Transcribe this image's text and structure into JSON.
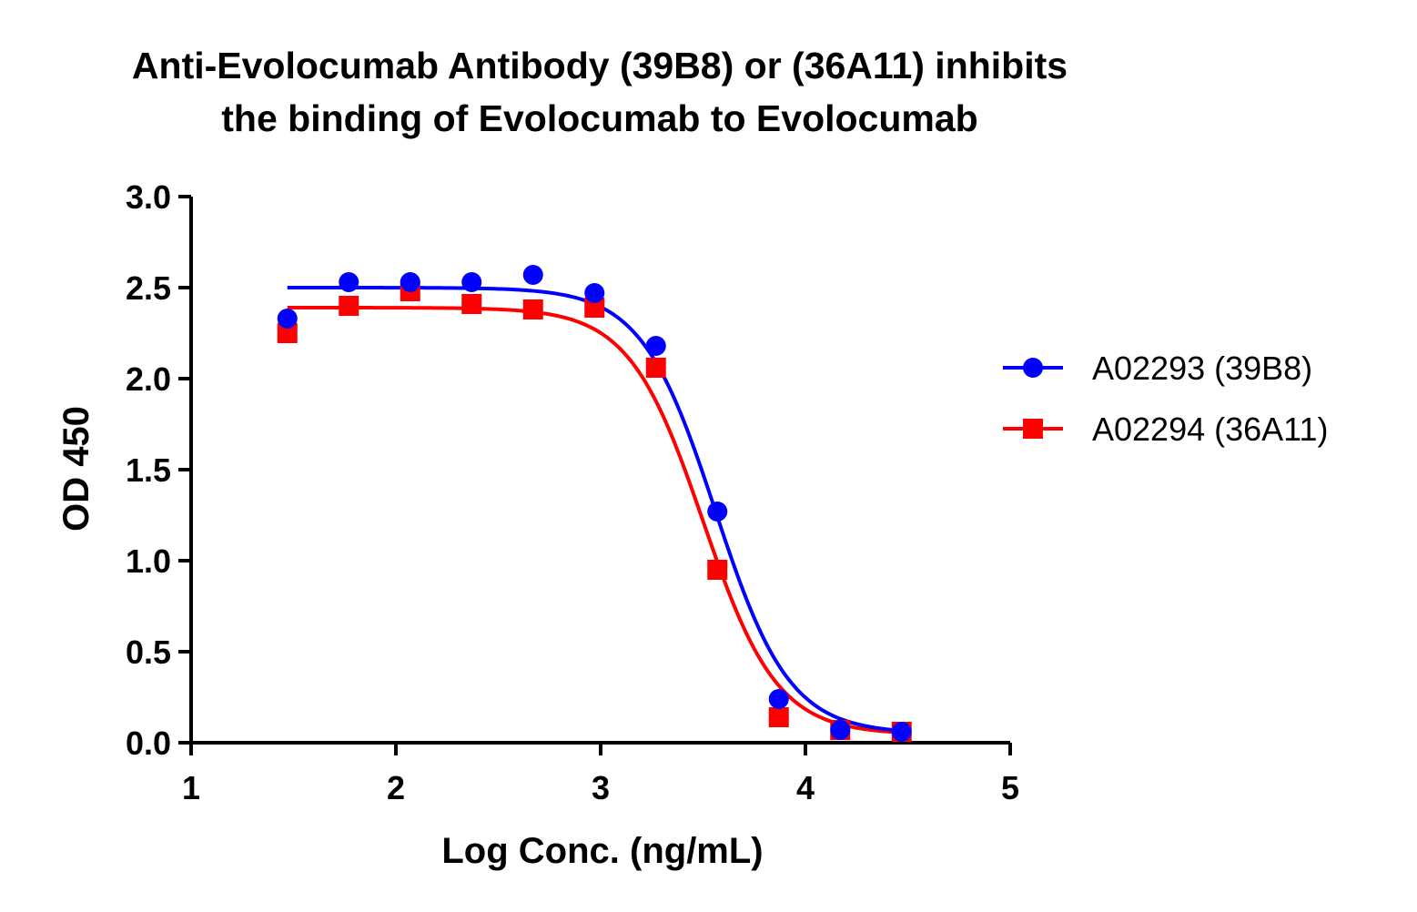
{
  "chart_data": {
    "type": "scatter",
    "title_lines": [
      "Anti-Evolocumab Antibody (39B8) or (36A11) inhibits",
      "the binding of Evolocumab to Evolocumab"
    ],
    "xlabel": "Log Conc. (ng/mL)",
    "ylabel": "OD 450",
    "xlim": [
      1,
      5
    ],
    "ylim": [
      0,
      3
    ],
    "xticks": [
      "1",
      "2",
      "3",
      "4",
      "5"
    ],
    "yticks": [
      "0.0",
      "0.5",
      "1.0",
      "1.5",
      "2.0",
      "2.5",
      "3.0"
    ],
    "legend_position": "right",
    "series": [
      {
        "name": "A02293 (39B8)",
        "color": "#0000ff",
        "marker": "circle",
        "x": [
          1.47,
          1.77,
          2.07,
          2.37,
          2.67,
          2.97,
          3.27,
          3.57,
          3.87,
          4.17,
          4.47
        ],
        "y": [
          2.33,
          2.53,
          2.53,
          2.53,
          2.57,
          2.47,
          2.18,
          1.27,
          0.24,
          0.07,
          0.06
        ],
        "fit": {
          "bottom": 0.05,
          "top": 2.5,
          "logEC50": 3.56,
          "hill": -2.4
        }
      },
      {
        "name": "A02294 (36A11)",
        "color": "#ff0000",
        "marker": "square",
        "x": [
          1.47,
          1.77,
          2.07,
          2.37,
          2.67,
          2.97,
          3.27,
          3.57,
          3.87,
          4.17,
          4.47
        ],
        "y": [
          2.25,
          2.4,
          2.48,
          2.41,
          2.38,
          2.39,
          2.06,
          0.95,
          0.14,
          0.07,
          0.06
        ],
        "fit": {
          "bottom": 0.045,
          "top": 2.39,
          "logEC50": 3.5,
          "hill": -2.4
        }
      }
    ]
  }
}
